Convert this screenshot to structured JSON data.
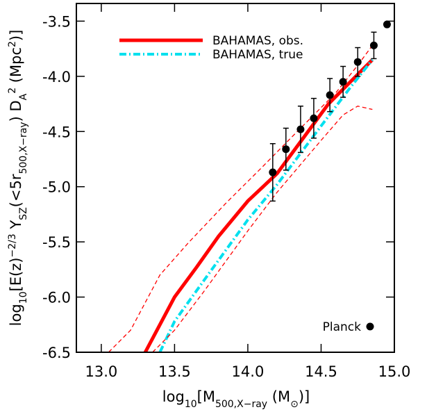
{
  "chart_data": {
    "type": "line",
    "x_label": [
      "log",
      {
        "sub": "10"
      },
      "[M",
      {
        "sub": "500,X−ray"
      },
      " (M",
      {
        "sub": "⊙"
      },
      ")]"
    ],
    "y_label": [
      "log",
      {
        "sub": "10"
      },
      "[E(z)",
      {
        "sup": "−2/3"
      },
      " Y",
      {
        "sub": "SZ"
      },
      "(<5r",
      {
        "sub": "500,X−ray"
      },
      ") D",
      {
        "sub": "A"
      },
      {
        "sup": "2"
      },
      " (Mpc",
      {
        "sup": "2"
      },
      ")]"
    ],
    "xlim": [
      12.83,
      15.0
    ],
    "ylim": [
      -6.5,
      -3.34
    ],
    "xticks": [
      {
        "value": 13,
        "label": "13.0"
      },
      13.5,
      {
        "value": 14,
        "label": "14.0"
      },
      14.5,
      {
        "value": 15,
        "label": "15.0"
      }
    ],
    "yticks": [
      -3.5,
      {
        "value": -4,
        "label": "-4.0"
      },
      -4.5,
      {
        "value": -5,
        "label": "-5.0"
      },
      -5.5,
      {
        "value": -6,
        "label": "-6.0"
      },
      -6.5
    ],
    "legend": "upper left",
    "series": [
      {
        "name": "BAHAMAS, obs.",
        "color": "#ff0000",
        "style": "solid",
        "width": 5,
        "x": [
          13.3,
          13.5,
          13.65,
          13.8,
          14.0,
          14.2,
          14.4,
          14.55,
          14.7,
          14.85
        ],
        "values": [
          -6.5,
          -6.0,
          -5.73,
          -5.45,
          -5.13,
          -4.88,
          -4.52,
          -4.25,
          -4.05,
          -3.85
        ]
      },
      {
        "name": "BAHAMAS, true",
        "color": "#00e0ee",
        "style": "dashdot",
        "width": 4,
        "x": [
          13.4,
          13.5,
          13.7,
          14.0,
          14.2,
          14.5,
          14.7,
          14.85
        ],
        "values": [
          -6.5,
          -6.22,
          -5.85,
          -5.3,
          -4.98,
          -4.45,
          -4.1,
          -3.85
        ]
      },
      {
        "color": "#ff0000",
        "style": "dashed",
        "width": 1.3,
        "x": [
          13.05,
          13.2,
          13.4,
          13.6,
          13.85,
          14.1,
          14.3,
          14.6,
          14.75,
          14.85
        ],
        "values": [
          -6.5,
          -6.3,
          -5.8,
          -5.5,
          -5.15,
          -4.82,
          -4.55,
          -4.15,
          -3.9,
          -3.72
        ]
      },
      {
        "color": "#ff0000",
        "style": "dashed",
        "width": 1.3,
        "x": [
          13.35,
          13.5,
          13.7,
          14.0,
          14.2,
          14.5,
          14.65,
          14.75,
          14.85
        ],
        "values": [
          -6.5,
          -6.3,
          -5.95,
          -5.4,
          -5.05,
          -4.58,
          -4.35,
          -4.27,
          -4.3
        ]
      },
      {
        "name": "Planck",
        "color": "#000000",
        "style": "points",
        "legend": "lower right",
        "x": [
          14.17,
          14.26,
          14.36,
          14.45,
          14.56,
          14.65,
          14.75,
          14.86,
          14.95
        ],
        "values": [
          -4.87,
          -4.66,
          -4.48,
          -4.38,
          -4.17,
          -4.05,
          -3.87,
          -3.72,
          -3.53
        ],
        "errors": [
          0.26,
          0.19,
          0.21,
          0.18,
          0.15,
          0.14,
          0.13,
          0.12,
          null
        ]
      }
    ]
  }
}
